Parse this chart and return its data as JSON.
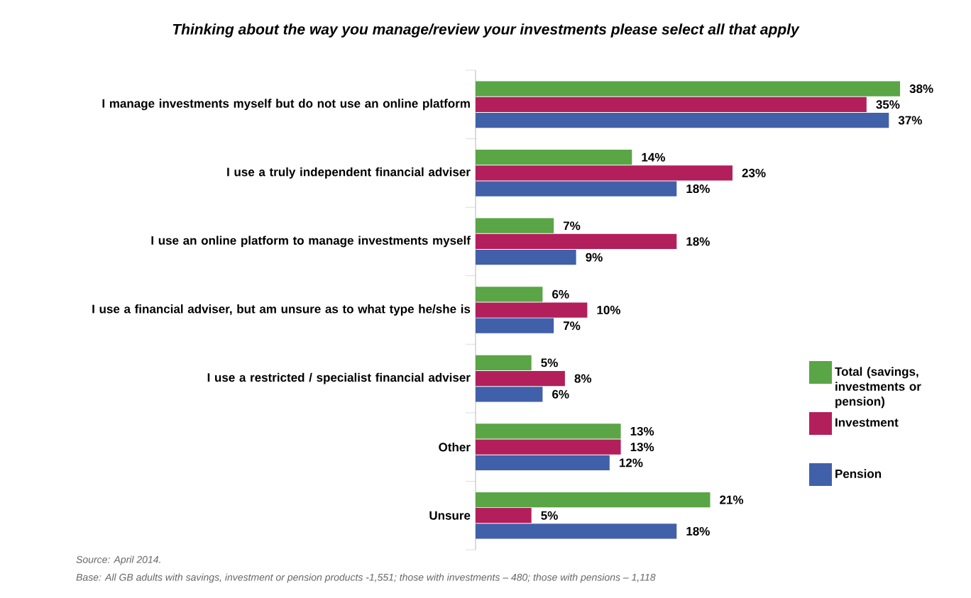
{
  "chart_data": {
    "type": "bar",
    "orientation": "horizontal",
    "title": "Thinking about the way you manage/review your investments please select all that apply",
    "categories": [
      "I manage investments myself but do not use an online platform",
      "I use a truly independent financial adviser",
      "I use an online platform to manage investments myself",
      "I use a financial adviser, but am unsure as to what type he/she is",
      "I use a restricted / specialist financial adviser",
      "Other",
      "Unsure"
    ],
    "series": [
      {
        "name": "Total (savings, investments or pension)",
        "color": "#5aa546",
        "values": [
          38,
          14,
          7,
          6,
          5,
          13,
          21
        ],
        "value_labels": [
          "38%",
          "14%",
          "7%",
          "6%",
          "5%",
          "13%",
          "21%"
        ]
      },
      {
        "name": "Investment",
        "color": "#b21f5b",
        "values": [
          35,
          23,
          18,
          10,
          8,
          13,
          5
        ],
        "value_labels": [
          "35%",
          "23%",
          "18%",
          "10%",
          "8%",
          "13%",
          "5%"
        ]
      },
      {
        "name": "Pension",
        "color": "#4160aa",
        "values": [
          37,
          18,
          9,
          7,
          6,
          12,
          18
        ],
        "value_labels": [
          "37%",
          "18%",
          "9%",
          "7%",
          "6%",
          "12%",
          "18%"
        ]
      }
    ],
    "legend": "right",
    "tick_labels": "y",
    "annotations": [
      "Source: April 2014.",
      "Base: All GB adults with savings, investment or pension products -1,551; those with investments – 480; those with pensions – 1,118"
    ]
  }
}
